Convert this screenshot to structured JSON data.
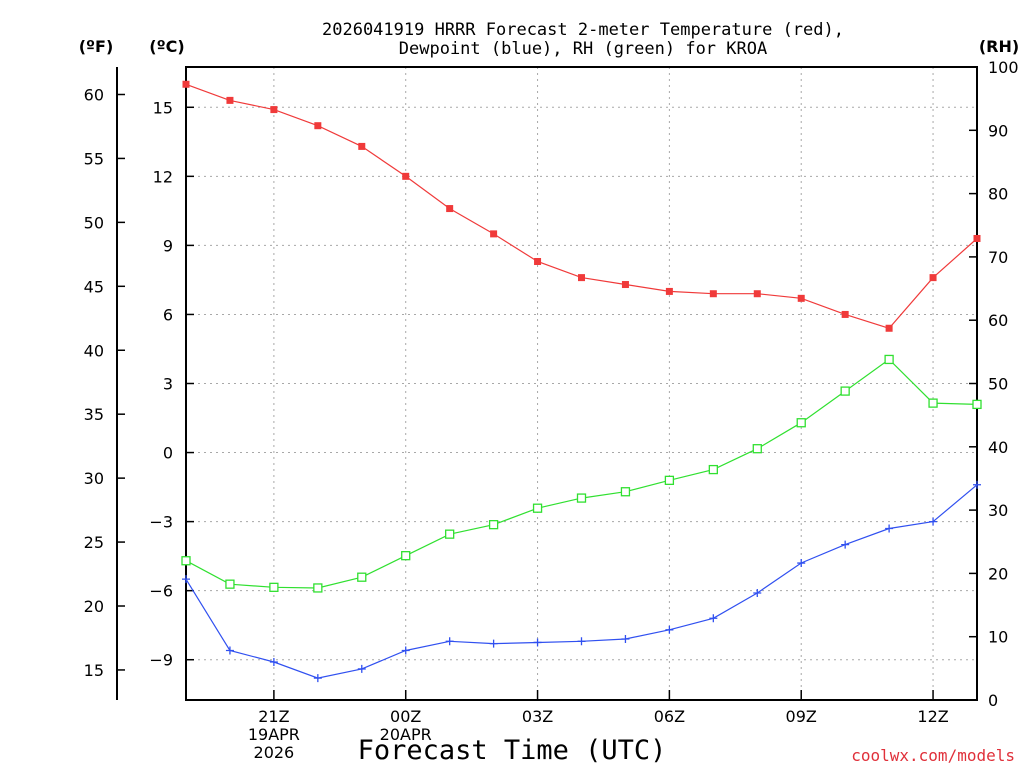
{
  "chart_data": {
    "type": "line",
    "title": [
      "2026041919 HRRR Forecast 2-meter Temperature (red),",
      "Dewpoint (blue), RH (green) for KROA"
    ],
    "xlabel": "Forecast Time (UTC)",
    "credit": "coolwx.com/models",
    "x_hours": [
      19,
      20,
      21,
      22,
      23,
      24,
      25,
      26,
      27,
      28,
      29,
      30,
      31,
      32,
      33,
      34,
      35,
      36,
      37
    ],
    "x_ticks": [
      {
        "hour": 21,
        "lines": [
          "21Z",
          "19APR",
          "2026"
        ]
      },
      {
        "hour": 24,
        "lines": [
          "00Z",
          "20APR"
        ]
      },
      {
        "hour": 27,
        "lines": [
          "03Z"
        ]
      },
      {
        "hour": 30,
        "lines": [
          "06Z"
        ]
      },
      {
        "hour": 33,
        "lines": [
          "09Z"
        ]
      },
      {
        "hour": 36,
        "lines": [
          "12Z"
        ]
      }
    ],
    "x_range": [
      19,
      37
    ],
    "axes": {
      "fahrenheit": {
        "unit_label": "(ºF)",
        "ticks": [
          15,
          20,
          25,
          30,
          35,
          40,
          45,
          50,
          55,
          60
        ]
      },
      "celsius": {
        "unit_label": "(ºC)",
        "range": [
          -10.75,
          16.75
        ],
        "ticks": [
          -9,
          -6,
          -3,
          0,
          3,
          6,
          9,
          12,
          15
        ]
      },
      "rh": {
        "unit_label": "(RH)",
        "range": [
          0,
          100
        ],
        "ticks": [
          0,
          10,
          20,
          30,
          40,
          50,
          60,
          70,
          80,
          90,
          100
        ]
      }
    },
    "series": [
      {
        "name": "Temperature",
        "axis": "celsius",
        "color": "#f03a3a",
        "marker": "filled-square",
        "values": [
          16.0,
          15.3,
          14.9,
          14.2,
          13.3,
          12.0,
          10.6,
          9.5,
          8.3,
          7.6,
          7.3,
          7.0,
          6.9,
          6.9,
          6.7,
          6.0,
          5.4,
          7.6,
          9.3
        ]
      },
      {
        "name": "Dewpoint",
        "axis": "celsius",
        "color": "#3050f0",
        "marker": "plus",
        "values": [
          -5.5,
          -8.6,
          -9.1,
          -9.8,
          -9.4,
          -8.6,
          -8.2,
          -8.3,
          -8.25,
          -8.2,
          -8.1,
          -7.7,
          -7.2,
          -6.1,
          -4.8,
          -4.0,
          -3.3,
          -3.0,
          -1.4
        ]
      },
      {
        "name": "RH",
        "axis": "rh",
        "color": "#30e030",
        "marker": "open-square",
        "values": [
          22,
          18.3,
          17.8,
          17.7,
          19.4,
          22.8,
          26.2,
          27.7,
          30.3,
          31.9,
          32.9,
          34.7,
          36.4,
          39.7,
          43.8,
          48.8,
          53.8,
          46.9,
          46.7
        ]
      }
    ]
  }
}
